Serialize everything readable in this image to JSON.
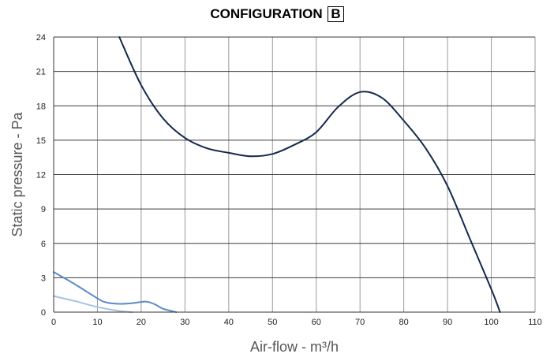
{
  "chart_data": {
    "type": "line",
    "title": "CONFIGURATION",
    "title_badge": "B",
    "xlabel": "Air-flow - m³/h",
    "ylabel": "Static pressure - Pa",
    "xlim": [
      0,
      110
    ],
    "ylim": [
      0,
      24
    ],
    "xticks": [
      0,
      10,
      20,
      30,
      40,
      50,
      60,
      70,
      80,
      90,
      100,
      110
    ],
    "yticks": [
      0,
      3,
      6,
      9,
      12,
      15,
      18,
      21,
      24
    ],
    "grid": true,
    "series": [
      {
        "color": "#14284b",
        "x": [
          15,
          20,
          25,
          30,
          35,
          40,
          45,
          50,
          55,
          60,
          65,
          70,
          75,
          80,
          85,
          90,
          95,
          100,
          102
        ],
        "y": [
          24,
          19.8,
          16.9,
          15.2,
          14.3,
          13.9,
          13.6,
          13.8,
          14.6,
          15.7,
          17.9,
          19.2,
          18.7,
          16.7,
          14.3,
          11,
          6.5,
          2,
          0
        ]
      },
      {
        "color": "#5b8ac9",
        "x": [
          0,
          5,
          10,
          12,
          15,
          18,
          21,
          23,
          25,
          28
        ],
        "y": [
          3.5,
          2.4,
          1.2,
          0.85,
          0.72,
          0.78,
          0.92,
          0.7,
          0.3,
          0
        ]
      },
      {
        "color": "#a5c3e4",
        "x": [
          0,
          5,
          10,
          15,
          18
        ],
        "y": [
          1.4,
          0.95,
          0.45,
          0.1,
          0
        ]
      }
    ]
  }
}
